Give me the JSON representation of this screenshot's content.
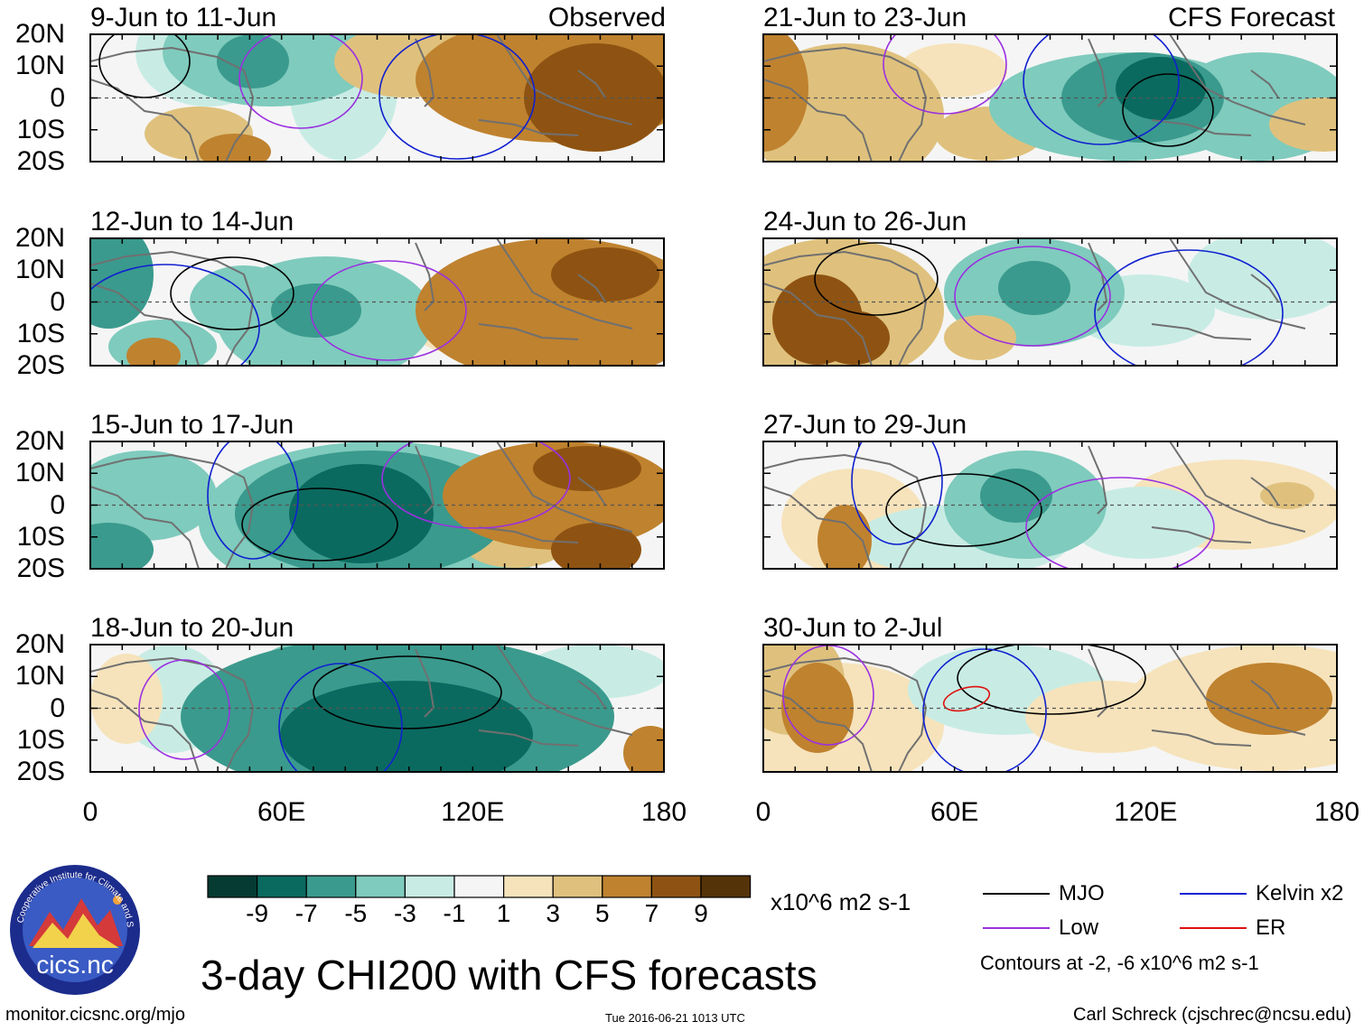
{
  "title": "3-day CHI200 with CFS forecasts",
  "left_tag": "Observed",
  "right_tag": "CFS Forecast",
  "lat_labels": [
    "20N",
    "10N",
    "0",
    "10S",
    "20S"
  ],
  "lon_labels": [
    "0",
    "60E",
    "120E",
    "180"
  ],
  "panels": [
    {
      "title": "9-Jun to 11-Jun",
      "column": "left",
      "row": 0
    },
    {
      "title": "12-Jun to 14-Jun",
      "column": "left",
      "row": 1
    },
    {
      "title": "15-Jun to 17-Jun",
      "column": "left",
      "row": 2
    },
    {
      "title": "18-Jun to 20-Jun",
      "column": "left",
      "row": 3
    },
    {
      "title": "21-Jun to 23-Jun",
      "column": "right",
      "row": 0
    },
    {
      "title": "24-Jun to 26-Jun",
      "column": "right",
      "row": 1
    },
    {
      "title": "27-Jun to 29-Jun",
      "column": "right",
      "row": 2
    },
    {
      "title": "30-Jun to 2-Jul",
      "column": "right",
      "row": 3
    }
  ],
  "colorbar": {
    "colors": [
      "#053b33",
      "#0b6a5f",
      "#3a9a8d",
      "#7fcbbd",
      "#c8ece4",
      "#f5f5f5",
      "#f6e3bb",
      "#dfc17d",
      "#bf822f",
      "#8e5312",
      "#553308"
    ],
    "ticks": [
      "-9",
      "-7",
      "-5",
      "-3",
      "-1",
      "1",
      "3",
      "5",
      "7",
      "9"
    ],
    "units": "x10^6 m2 s-1"
  },
  "legend": {
    "items": [
      {
        "label": "MJO",
        "color": "#000000"
      },
      {
        "label": "Kelvin x2",
        "color": "#1020d0"
      },
      {
        "label": "Low",
        "color": "#9b30e0"
      },
      {
        "label": "ER",
        "color": "#e01010"
      }
    ],
    "note": "Contours at -2, -6 x10^6 m2 s-1"
  },
  "logo_text": "cics.nc",
  "logo_ring_text": "Cooperative Institute for Climate and Satellites",
  "footer": {
    "url": "monitor.cicsnc.org/mjo",
    "timestamp": "Tue 2016-06-21 1013 UTC",
    "author": "Carl Schreck (cjschrec@ncsu.edu)"
  }
}
